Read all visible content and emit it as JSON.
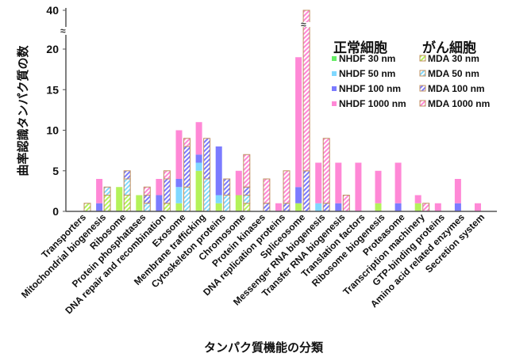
{
  "chart_data": {
    "type": "bar",
    "stacked": true,
    "title": "",
    "xlabel": "タンパク質機能の分類",
    "ylabel": "曲率認識タンパク質の数",
    "ylim": [
      0,
      40
    ],
    "axis_break": [
      20,
      40
    ],
    "yticks": [
      "0",
      "5",
      "10",
      "15",
      "20",
      "40"
    ],
    "grid": false,
    "legend_position": "top-right",
    "legend_groups": [
      {
        "title": "正常細胞",
        "entries": [
          "NHDF  30 nm",
          "NHDF  50 nm",
          "NHDF  100 nm",
          "NHDF  1000 nm"
        ]
      },
      {
        "title": "がん細胞",
        "entries": [
          "MDA  30 nm",
          "MDA  50 nm",
          "MDA  100 nm",
          "MDA  1000 nm"
        ]
      }
    ],
    "colors": [
      "#b4f25a",
      "#80d8ff",
      "#7b7bff",
      "#ff88d6"
    ],
    "legend_colors": [
      "#66ee66",
      "#80d8ff",
      "#7b7bff",
      "#ff88d6"
    ],
    "hatch_outline": "#c09060",
    "categories": [
      "Transporters",
      "Mitochondrial biogenesis",
      "Ribosome",
      "Protein phosphatases",
      "DNA repair and recombination",
      "Exosome",
      "Membrane trafficking",
      "Cytoskeleton proteins",
      "Chromosome",
      "Protein kinases",
      "DNA replication proteins",
      "Spliceosome",
      "Messenger RNA biogenesis",
      "Transfer RNA biogenesis",
      "Translation factors",
      "Ribosome biogenesis",
      "Proteasome",
      "Transcription machinery",
      "GTP-binding proteins",
      "Amino acid related enzymes",
      "Secretion system"
    ],
    "series": [
      {
        "name": "NHDF  30 nm",
        "group": "NHDF",
        "values": [
          0,
          0,
          3,
          2,
          0,
          1,
          5,
          1,
          2,
          0,
          0,
          1,
          0,
          0,
          0,
          1,
          0,
          1,
          0,
          0,
          0
        ]
      },
      {
        "name": "NHDF  50 nm",
        "group": "NHDF",
        "values": [
          0,
          0,
          0,
          0,
          0,
          2,
          1,
          1,
          0,
          0,
          0,
          0,
          1,
          0,
          0,
          0,
          0,
          0,
          0,
          0,
          0
        ]
      },
      {
        "name": "NHDF  100 nm",
        "group": "NHDF",
        "values": [
          0,
          1,
          0,
          0,
          2,
          1,
          1,
          6,
          0,
          0,
          0,
          2,
          0,
          1,
          0,
          0,
          1,
          0,
          0,
          1,
          0
        ]
      },
      {
        "name": "NHDF  1000 nm",
        "group": "NHDF",
        "values": [
          0,
          3,
          0,
          0,
          2,
          6,
          4,
          0,
          3,
          0,
          1,
          16,
          5,
          5,
          6,
          4,
          5,
          1,
          1,
          3,
          1
        ]
      },
      {
        "name": "MDA  30 nm",
        "group": "MDA",
        "values": [
          1,
          2,
          2,
          0,
          1,
          0,
          0,
          0,
          1,
          0,
          0,
          0,
          0,
          0,
          0,
          0,
          0,
          0,
          0,
          0,
          0
        ]
      },
      {
        "name": "MDA  50 nm",
        "group": "MDA",
        "values": [
          0,
          1,
          2,
          1,
          0,
          3,
          4,
          2,
          1,
          0,
          0,
          0,
          0,
          0,
          0,
          0,
          0,
          0,
          0,
          0,
          0
        ]
      },
      {
        "name": "MDA  100 nm",
        "group": "MDA",
        "values": [
          0,
          0,
          1,
          1,
          3,
          5,
          5,
          2,
          1,
          1,
          1,
          5,
          1,
          0,
          0,
          0,
          0,
          0,
          0,
          0,
          0
        ]
      },
      {
        "name": "MDA  1000 nm",
        "group": "MDA",
        "values": [
          0,
          0,
          0,
          1,
          1,
          1,
          0,
          0,
          4,
          3,
          4,
          35,
          8,
          2,
          0,
          0,
          0,
          1,
          0,
          0,
          0
        ]
      }
    ]
  }
}
